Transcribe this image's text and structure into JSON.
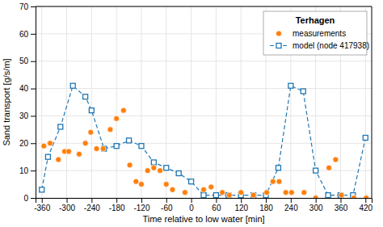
{
  "chart_data": {
    "type": "line",
    "title": "Terhagen",
    "xlabel": "Time relative to low water [min]",
    "ylabel": "Sand transport [g/s/m]",
    "xlim": [
      -375,
      435
    ],
    "ylim": [
      0,
      70
    ],
    "xticks": [
      -360,
      -300,
      -240,
      -180,
      -120,
      -60,
      0,
      60,
      120,
      180,
      240,
      300,
      360,
      420
    ],
    "yticks": [
      0,
      10,
      20,
      30,
      40,
      50,
      60,
      70
    ],
    "grid": true,
    "legend": "upper right",
    "series": [
      {
        "name": "model (node 417938)",
        "type": "line",
        "marker": "square",
        "line_style": "dashed",
        "x": [
          -360,
          -345,
          -315,
          -285,
          -255,
          -240,
          -210,
          -180,
          -150,
          -120,
          -90,
          -60,
          -30,
          0,
          30,
          60,
          90,
          120,
          150,
          180,
          210,
          240,
          270,
          300,
          330,
          360,
          390,
          420
        ],
        "values": [
          3,
          15,
          26,
          41,
          37,
          32,
          18,
          19,
          21,
          19,
          13,
          11,
          9,
          6,
          1,
          1,
          1,
          1,
          1,
          1,
          11,
          41,
          39,
          10,
          1,
          1,
          1,
          22
        ]
      },
      {
        "name": "measurements",
        "type": "scatter",
        "marker": "circle",
        "x": [
          -355,
          -340,
          -320,
          -305,
          -295,
          -270,
          -255,
          -242,
          -228,
          -212,
          -195,
          -180,
          -163,
          -148,
          -133,
          -120,
          -105,
          -90,
          -75,
          -60,
          -45,
          -15,
          30,
          48,
          75,
          92,
          120,
          150,
          182,
          197,
          212,
          228,
          242,
          272,
          300,
          332,
          348,
          362,
          392,
          422
        ],
        "values": [
          19,
          20,
          14,
          17,
          17,
          16,
          20,
          24,
          18,
          18,
          25,
          29,
          32,
          12,
          6,
          5,
          10,
          11,
          10,
          5,
          3,
          2,
          3,
          4,
          2,
          1,
          2,
          1,
          2,
          6,
          6,
          2,
          2,
          2,
          0,
          11,
          14,
          1,
          0,
          0
        ]
      }
    ]
  }
}
